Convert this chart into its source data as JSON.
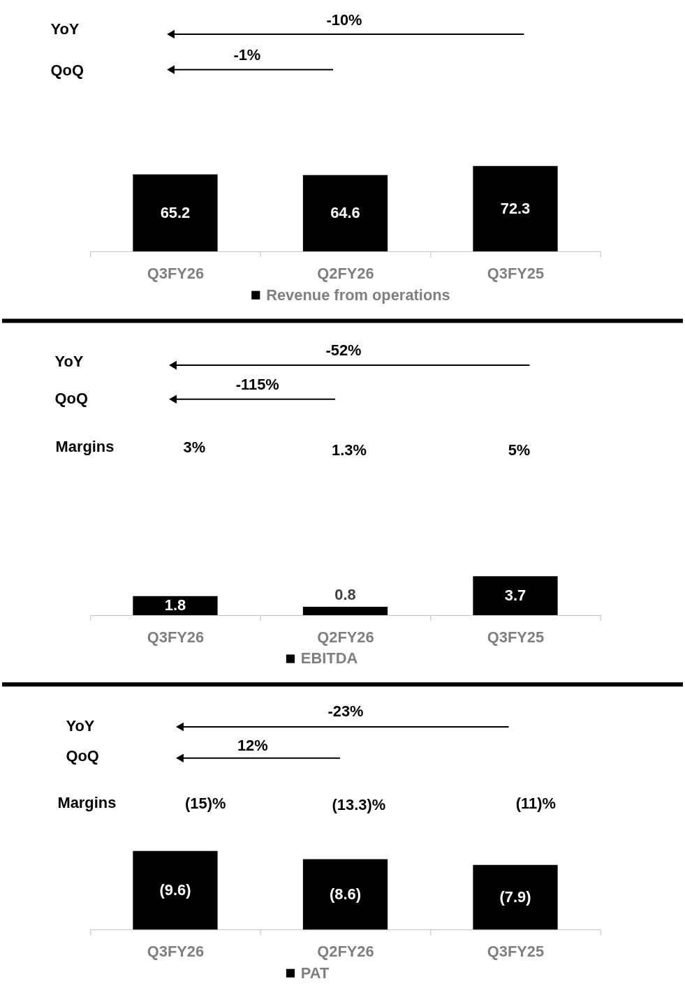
{
  "chart_data": [
    {
      "type": "bar",
      "categories": [
        "Q3FY26",
        "Q2FY26",
        "Q3FY25"
      ],
      "series": [
        {
          "name": "Revenue from operations",
          "color": "#000000",
          "values": [
            65.2,
            64.6,
            72.3
          ]
        }
      ],
      "data_labels": true,
      "legend": "bottom",
      "annotations": [
        "YoY",
        "-10%",
        "QoQ",
        "-1%"
      ]
    },
    {
      "type": "bar",
      "categories": [
        "Q3FY26",
        "Q2FY26",
        "Q3FY25"
      ],
      "series": [
        {
          "name": "EBITDA",
          "color": "#000000",
          "values": [
            1.8,
            0.8,
            3.7
          ]
        }
      ],
      "data_labels": true,
      "legend": "bottom",
      "annotations": [
        "YoY",
        "-52%",
        "QoQ",
        "-115%",
        "Margins",
        "3%",
        "1.3%",
        "5%"
      ]
    },
    {
      "type": "bar",
      "categories": [
        "Q3FY26",
        "Q2FY26",
        "Q3FY25"
      ],
      "series": [
        {
          "name": "PAT",
          "color": "#000000",
          "values": [
            9.6,
            8.6,
            7.9
          ],
          "value_labels": [
            "(9.6)",
            "(8.6)",
            "(7.9)"
          ]
        }
      ],
      "legend": "bottom",
      "annotations": [
        "YoY",
        "-23%",
        "QoQ",
        "12%",
        "Margins",
        "(15)%",
        "(13.3)%",
        "(11)%"
      ]
    }
  ]
}
